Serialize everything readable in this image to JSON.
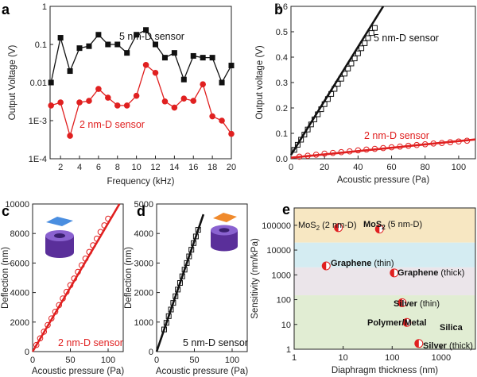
{
  "panels": {
    "a": {
      "label": "a",
      "chart_data": {
        "type": "line",
        "xlabel": "Frequency (kHz)",
        "ylabel": "Output Voltage (V)",
        "xlim": [
          0.9,
          20
        ],
        "ylim": [
          0.0001,
          1
        ],
        "yscale": "log",
        "x_ticks": [
          "2",
          "4",
          "6",
          "8",
          "10",
          "12",
          "14",
          "16",
          "18",
          "20"
        ],
        "y_ticks": [
          "1E-4",
          "1E-3",
          "0.01",
          "0.1",
          "1"
        ],
        "series": [
          {
            "name": "5 nm-D sensor",
            "color": "#111111",
            "marker": "square",
            "x": [
              1,
              2,
              3,
              4,
              5,
              6,
              7,
              8,
              9,
              10,
              11,
              12,
              13,
              14,
              15,
              16,
              17,
              18,
              19,
              20
            ],
            "values": [
              0.01,
              0.15,
              0.02,
              0.08,
              0.09,
              0.18,
              0.1,
              0.1,
              0.06,
              0.18,
              0.24,
              0.1,
              0.045,
              0.06,
              0.012,
              0.05,
              0.045,
              0.045,
              0.01,
              0.028
            ]
          },
          {
            "name": "2 nm-D sensor",
            "color": "#e02020",
            "marker": "circle",
            "x": [
              1,
              2,
              3,
              4,
              5,
              6,
              7,
              8,
              9,
              10,
              11,
              12,
              13,
              14,
              15,
              16,
              17,
              18,
              19,
              20
            ],
            "values": [
              0.0025,
              0.003,
              0.0004,
              0.003,
              0.0033,
              0.0068,
              0.004,
              0.0025,
              0.0025,
              0.0045,
              0.029,
              0.018,
              0.0032,
              0.0022,
              0.0038,
              0.0033,
              0.009,
              0.0013,
              0.001,
              0.00045
            ]
          }
        ]
      }
    },
    "b": {
      "label": "b",
      "chart_data": {
        "type": "line",
        "xlabel": "Acoustic pressure (Pa)",
        "ylabel": "Output voltage (V)",
        "xlim": [
          0,
          110
        ],
        "ylim": [
          0,
          0.6
        ],
        "x_ticks": [
          "0",
          "20",
          "40",
          "60",
          "80",
          "100"
        ],
        "y_ticks": [
          "0.0",
          "0.1",
          "0.2",
          "0.3",
          "0.4",
          "0.5",
          "0.6"
        ],
        "series": [
          {
            "name": "5 nm-D sensor",
            "color": "#111111",
            "marker": "square",
            "x": [
              2,
              4,
              6,
              8,
              10,
              12,
              14,
              16,
              18,
              20,
              22,
              24,
              26,
              28,
              30,
              32,
              34,
              36,
              38,
              40,
              42,
              44,
              46,
              48,
              50
            ],
            "values": [
              0.035,
              0.055,
              0.075,
              0.095,
              0.115,
              0.135,
              0.155,
              0.175,
              0.195,
              0.215,
              0.235,
              0.255,
              0.275,
              0.295,
              0.315,
              0.335,
              0.355,
              0.375,
              0.395,
              0.415,
              0.435,
              0.455,
              0.475,
              0.495,
              0.515
            ],
            "fit": {
              "x": [
                0,
                55
              ],
              "values": [
                0.015,
                0.6
              ]
            }
          },
          {
            "name": "2 nm-D sensor",
            "color": "#e02020",
            "marker": "circle",
            "x": [
              5,
              10,
              15,
              20,
              25,
              30,
              35,
              40,
              45,
              50,
              55,
              60,
              65,
              70,
              75,
              80,
              85,
              90,
              95,
              100,
              105
            ],
            "values": [
              0.008,
              0.012,
              0.016,
              0.02,
              0.023,
              0.026,
              0.029,
              0.033,
              0.036,
              0.039,
              0.042,
              0.045,
              0.048,
              0.051,
              0.054,
              0.057,
              0.06,
              0.062,
              0.065,
              0.068,
              0.071
            ],
            "fit": {
              "x": [
                0,
                110
              ],
              "values": [
                0.004,
                0.076
              ]
            }
          }
        ]
      }
    },
    "c": {
      "label": "c",
      "chart_data": {
        "type": "line",
        "xlabel": "Acoustic pressure (Pa)",
        "ylabel": "Deflection (nm)",
        "xlim": [
          0,
          120
        ],
        "ylim": [
          0,
          10000
        ],
        "x_ticks": [
          "0",
          "50",
          "100"
        ],
        "y_ticks": [
          "0",
          "2000",
          "4000",
          "6000",
          "8000",
          "10000"
        ],
        "series": [
          {
            "name": "2 nm-D sensor",
            "color": "#e02020",
            "marker": "circle",
            "x": [
              5,
              10,
              15,
              20,
              25,
              30,
              35,
              40,
              45,
              50,
              55,
              60,
              65,
              70,
              75,
              80,
              85,
              90,
              95,
              100
            ],
            "values": [
              450,
              900,
              1350,
              1800,
              2250,
              2700,
              3150,
              3600,
              4050,
              4500,
              4950,
              5400,
              5850,
              6300,
              6750,
              7200,
              7650,
              8100,
              8550,
              9000
            ],
            "fit": {
              "x": [
                0,
                115
              ],
              "values": [
                0,
                10000
              ]
            }
          }
        ]
      }
    },
    "d": {
      "label": "d",
      "chart_data": {
        "type": "line",
        "xlabel": "Acoustic pressure (Pa)",
        "ylabel": "Deflection (nm)",
        "xlim": [
          0,
          120
        ],
        "ylim": [
          0,
          5000
        ],
        "x_ticks": [
          "0",
          "50",
          "100"
        ],
        "y_ticks": [
          "0",
          "1000",
          "2000",
          "3000",
          "4000",
          "5000"
        ],
        "series": [
          {
            "name": "5 nm-D sensor",
            "color": "#111111",
            "marker": "square",
            "x": [
              10,
              13,
              16,
              19,
              22,
              25,
              28,
              31,
              34,
              37,
              40,
              43,
              46,
              49,
              52,
              55
            ],
            "values": [
              750,
              975,
              1200,
              1425,
              1650,
              1875,
              2100,
              2325,
              2550,
              2775,
              3000,
              3225,
              3450,
              3675,
              3900,
              4125
            ],
            "fit": {
              "x": [
                0,
                62
              ],
              "values": [
                0,
                4650
              ]
            }
          }
        ]
      }
    },
    "e": {
      "label": "e",
      "chart_data": {
        "type": "scatter",
        "xlabel": "Diaphragm thickness (nm)",
        "ylabel": "Sensitivity (nm/kPa)",
        "xscale": "log",
        "yscale": "log",
        "xlim": [
          1,
          5000
        ],
        "ylim": [
          1,
          500000
        ],
        "x_ticks": [
          "1",
          "10",
          "100",
          "1000"
        ],
        "y_ticks": [
          "1",
          "10",
          "100",
          "1000",
          "10000",
          "100000"
        ],
        "bands": [
          {
            "from": 20000,
            "to": 500000,
            "color": "#f7e7c2"
          },
          {
            "from": 2000,
            "to": 20000,
            "color": "#d4ecf2"
          },
          {
            "from": 150,
            "to": 2000,
            "color": "#ebe5ea"
          },
          {
            "from": 1,
            "to": 150,
            "color": "#e1edd3"
          }
        ],
        "points": [
          {
            "x": 8,
            "y": 80000
          },
          {
            "x": 55,
            "y": 70000
          },
          {
            "x": 4.5,
            "y": 2300
          },
          {
            "x": 110,
            "y": 1200
          },
          {
            "x": 160,
            "y": 75
          },
          {
            "x": 200,
            "y": 12
          },
          {
            "x": 350,
            "y": 1.7
          }
        ]
      }
    }
  },
  "annotations": {
    "a_5nm": "5 nm-D sensor",
    "a_2nm": "2 nm-D sensor",
    "b_5nm": "5 nm-D sensor",
    "b_2nm": "2 nm-D sensor",
    "c_2nm": "2 nm-D sensor",
    "d_5nm": "5 nm-D sensor",
    "e_mos2_2_pre": "MoS",
    "e_mos2_2_sub": "2",
    "e_mos2_2_post": " (2 nm-D)",
    "e_mos2_5_pre": "MoS",
    "e_mos2_5_sub": "2",
    "e_mos2_5_post": " (5 nm-D)",
    "e_graph_thin_b": "Graphene",
    "e_graph_thin_n": " (thin)",
    "e_graph_thick_b": "Graphene",
    "e_graph_thick_n": " (thick)",
    "e_silver_thin_b": "Silver",
    "e_silver_thin_n": " (thin)",
    "e_polymer": "Polymer/Metal",
    "e_silica": "Silica",
    "e_silver_thick_b": "Silver",
    "e_silver_thick_n": " (thick)"
  },
  "colors": {
    "red": "#e02020",
    "black": "#111111",
    "purple": "#6a3fb0",
    "membrane_blue": "#4a8ee0",
    "membrane_orange": "#f08a2c"
  }
}
